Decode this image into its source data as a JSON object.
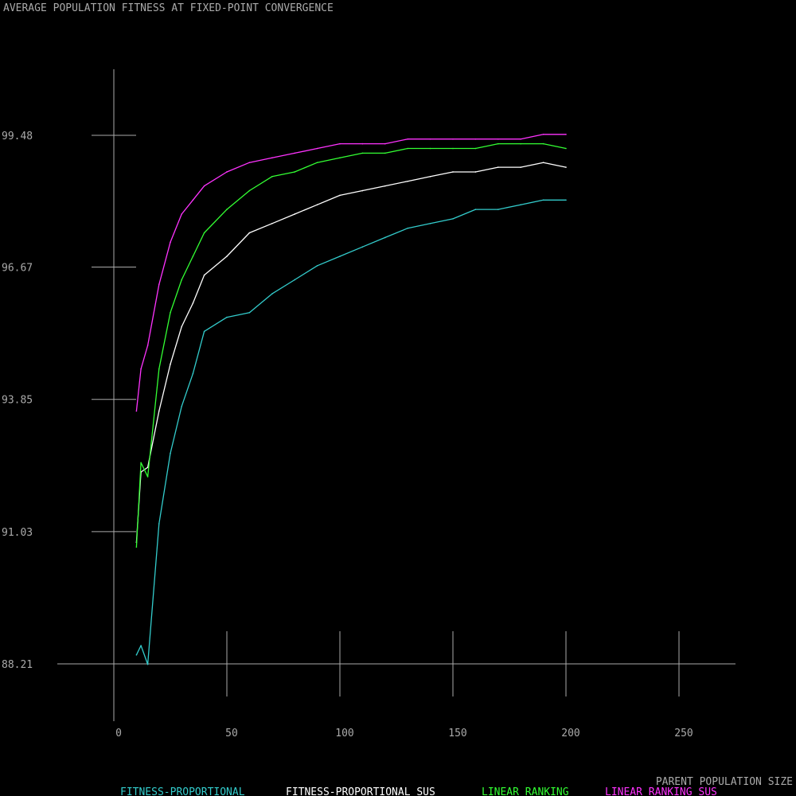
{
  "chart_data": {
    "type": "line",
    "title": "AVERAGE POPULATION FITNESS AT FIXED-POINT CONVERGENCE",
    "xlabel": "PARENT POPULATION SIZE",
    "ylabel": "",
    "xlim": [
      0,
      250
    ],
    "ylim": [
      88.21,
      99.48
    ],
    "x_ticks": [
      0,
      50,
      100,
      150,
      200,
      250
    ],
    "x_tick_labels": [
      "0",
      "50",
      "100",
      "150",
      "200",
      "250"
    ],
    "y_ticks": [
      88.21,
      91.03,
      93.85,
      96.67,
      99.48
    ],
    "y_tick_labels": [
      "88.21",
      "91.03",
      "93.85",
      "96.67",
      "99.48"
    ],
    "grid": false,
    "legend_position": "bottom",
    "x": [
      10,
      12,
      15,
      20,
      25,
      30,
      35,
      40,
      50,
      60,
      70,
      80,
      90,
      100,
      110,
      120,
      130,
      140,
      150,
      160,
      170,
      180,
      190,
      200
    ],
    "series": [
      {
        "name": "FITNESS-PROPORTIONAL",
        "color": "#33cccc",
        "values": [
          88.4,
          88.6,
          88.2,
          91.2,
          92.7,
          93.7,
          94.4,
          95.3,
          95.6,
          95.7,
          96.1,
          96.4,
          96.7,
          96.9,
          97.1,
          97.3,
          97.5,
          97.6,
          97.7,
          97.9,
          97.9,
          98.0,
          98.1,
          98.1
        ]
      },
      {
        "name": "FITNESS-PROPORTIONAL SUS",
        "color": "#ffffff",
        "values": [
          90.8,
          92.3,
          92.4,
          93.6,
          94.6,
          95.4,
          95.9,
          96.5,
          96.9,
          97.4,
          97.6,
          97.8,
          98.0,
          98.2,
          98.3,
          98.4,
          98.5,
          98.6,
          98.7,
          98.7,
          98.8,
          98.8,
          98.9,
          98.8
        ]
      },
      {
        "name": "LINEAR RANKING",
        "color": "#33ff33",
        "values": [
          90.7,
          92.5,
          92.2,
          94.5,
          95.7,
          96.4,
          96.9,
          97.4,
          97.9,
          98.3,
          98.6,
          98.7,
          98.9,
          99.0,
          99.1,
          99.1,
          99.2,
          99.2,
          99.2,
          99.2,
          99.3,
          99.3,
          99.3,
          99.2
        ]
      },
      {
        "name": "LINEAR RANKING SUS",
        "color": "#ff33ff",
        "values": [
          93.6,
          94.5,
          95.0,
          96.3,
          97.2,
          97.8,
          98.1,
          98.4,
          98.7,
          98.9,
          99.0,
          99.1,
          99.2,
          99.3,
          99.3,
          99.3,
          99.4,
          99.4,
          99.4,
          99.4,
          99.4,
          99.4,
          99.5,
          99.5
        ]
      }
    ]
  }
}
